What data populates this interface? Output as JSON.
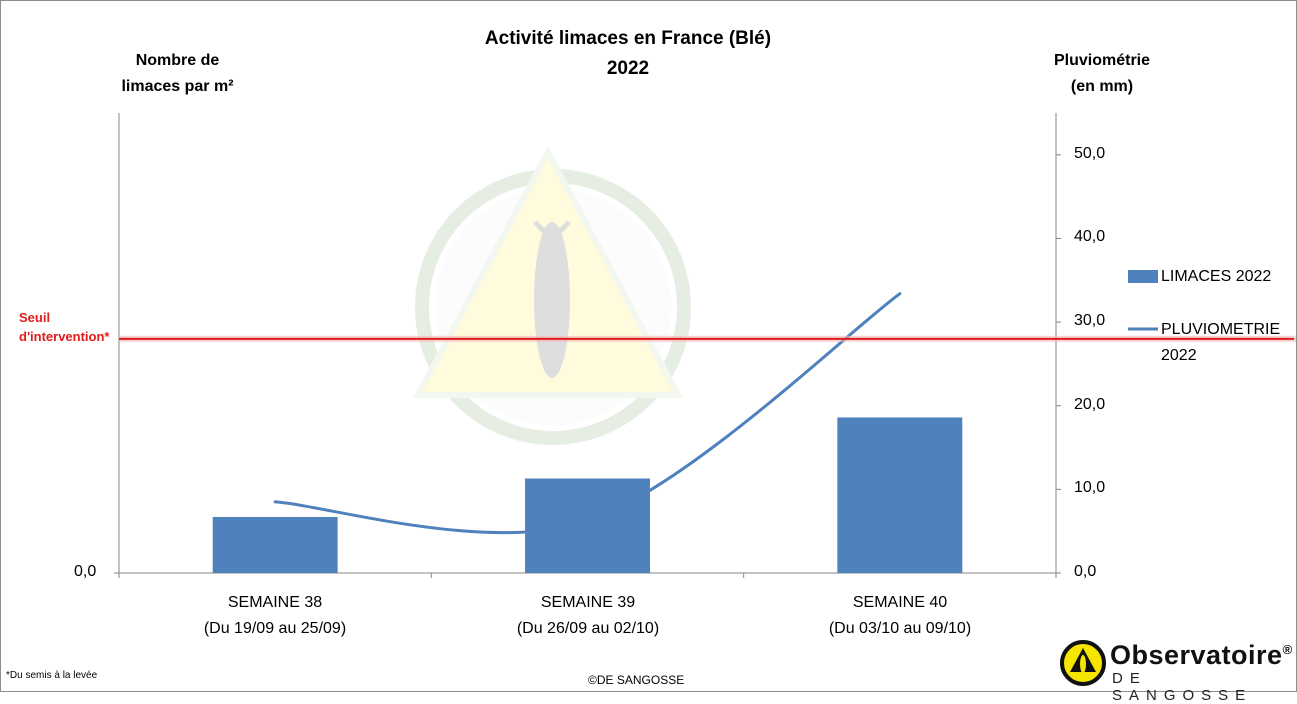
{
  "chart_data": {
    "type": "bar",
    "title": "Activité limaces en France (Blé)",
    "subtitle": "2022",
    "y_left_label_line1": "Nombre de",
    "y_left_label_line2": "limaces par m²",
    "y_right_label_line1": "Pluviométrie",
    "y_right_label_line2": "(en mm)",
    "categories": [
      {
        "line1": "SEMAINE 38",
        "line2": "(Du 19/09 au 25/09)"
      },
      {
        "line1": "SEMAINE 39",
        "line2": "(Du 26/09 au 02/10)"
      },
      {
        "line1": "SEMAINE 40",
        "line2": "(Du 03/10 au 09/10)"
      }
    ],
    "left_axis": {
      "ticks": [
        "0,0"
      ],
      "min": 0
    },
    "right_axis": {
      "ticks": [
        "0,0",
        "10,0",
        "20,0",
        "30,0",
        "40,0",
        "50,0"
      ],
      "min": 0,
      "max": 55,
      "ticks_values": [
        0,
        10,
        20,
        30,
        40,
        50
      ]
    },
    "series": [
      {
        "name": "LIMACES 2022",
        "kind": "bar",
        "color": "#4f81bd",
        "values_on_right_scale": [
          6.7,
          11.3,
          18.6
        ]
      },
      {
        "name_line1": "PLUVIOMETRIE",
        "name_line2": "2022",
        "kind": "line",
        "color": "#4f81bd",
        "values": [
          8.5,
          6.2,
          33.4
        ]
      }
    ],
    "threshold": {
      "label_line1": "Seuil",
      "label_line2": "d'intervention*",
      "value_on_right_scale": 28.0,
      "color": "#e01b1b"
    },
    "legend_position": "right",
    "grid": false
  },
  "footnote": {
    "star": "*",
    "text": "Du semis à la levée"
  },
  "copyright": "©DE SANGOSSE",
  "logo": {
    "name": "Observatoire",
    "mark": "®",
    "sub": "DE SANGOSSE"
  }
}
